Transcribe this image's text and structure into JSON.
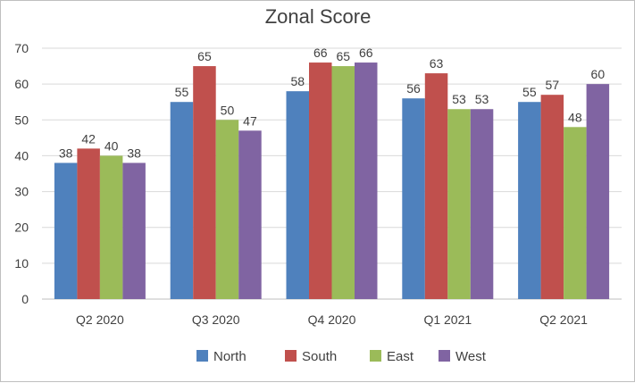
{
  "chart_data": {
    "type": "bar",
    "title": "Zonal Score",
    "categories": [
      "Q2 2020",
      "Q3 2020",
      "Q4 2020",
      "Q1 2021",
      "Q2 2021"
    ],
    "series": [
      {
        "name": "North",
        "color": "#4f81bd",
        "values": [
          38,
          55,
          58,
          56,
          55
        ]
      },
      {
        "name": "South",
        "color": "#c0504d",
        "values": [
          42,
          65,
          66,
          63,
          57
        ]
      },
      {
        "name": "East",
        "color": "#9bbb59",
        "values": [
          40,
          50,
          65,
          53,
          48
        ]
      },
      {
        "name": "West",
        "color": "#8064a2",
        "values": [
          38,
          47,
          66,
          53,
          60
        ]
      }
    ],
    "ylim": [
      0,
      70
    ],
    "yticks": [
      0,
      10,
      20,
      30,
      40,
      50,
      60,
      70
    ],
    "grid": true,
    "legend": "bottom",
    "xlabel": "",
    "ylabel": ""
  }
}
